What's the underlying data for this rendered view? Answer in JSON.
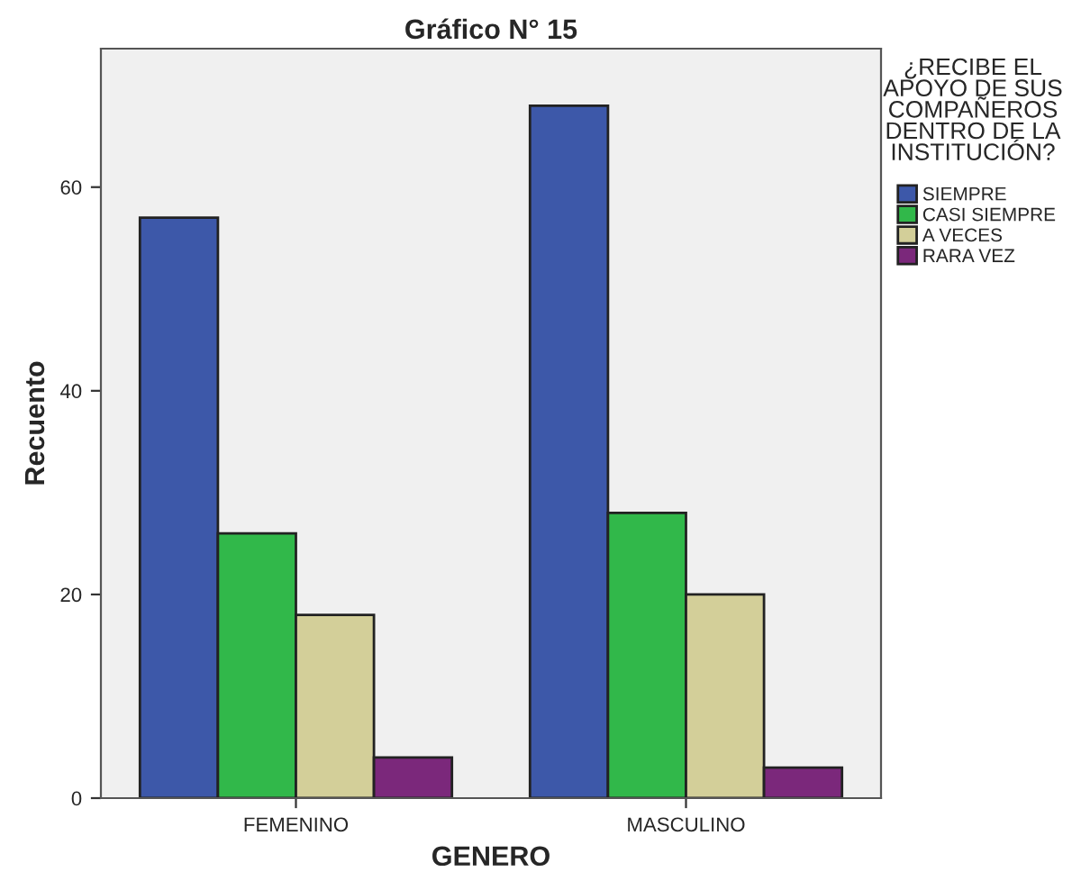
{
  "chart_data": {
    "type": "bar",
    "title": "Gráfico N° 15",
    "xlabel": "GENERO",
    "ylabel": "Recuento",
    "legend_title": "¿RECIBE EL APOYO DE SUS COMPAÑEROS DENTRO DE LA INSTITUCIÓN?",
    "categories": [
      "FEMENINO",
      "MASCULINO"
    ],
    "series": [
      {
        "name": "SIEMPRE",
        "color": "#3d58a9",
        "values": [
          57,
          68
        ]
      },
      {
        "name": "CASI SIEMPRE",
        "color": "#31b84a",
        "values": [
          26,
          28
        ]
      },
      {
        "name": "A VECES",
        "color": "#d3cf99",
        "values": [
          18,
          20
        ]
      },
      {
        "name": "RARA VEZ",
        "color": "#7b287b",
        "values": [
          4,
          3
        ]
      }
    ],
    "ylim": [
      0,
      73.6
    ],
    "yticks": [
      0,
      20,
      40,
      60
    ],
    "grid": false,
    "legend": "right"
  }
}
